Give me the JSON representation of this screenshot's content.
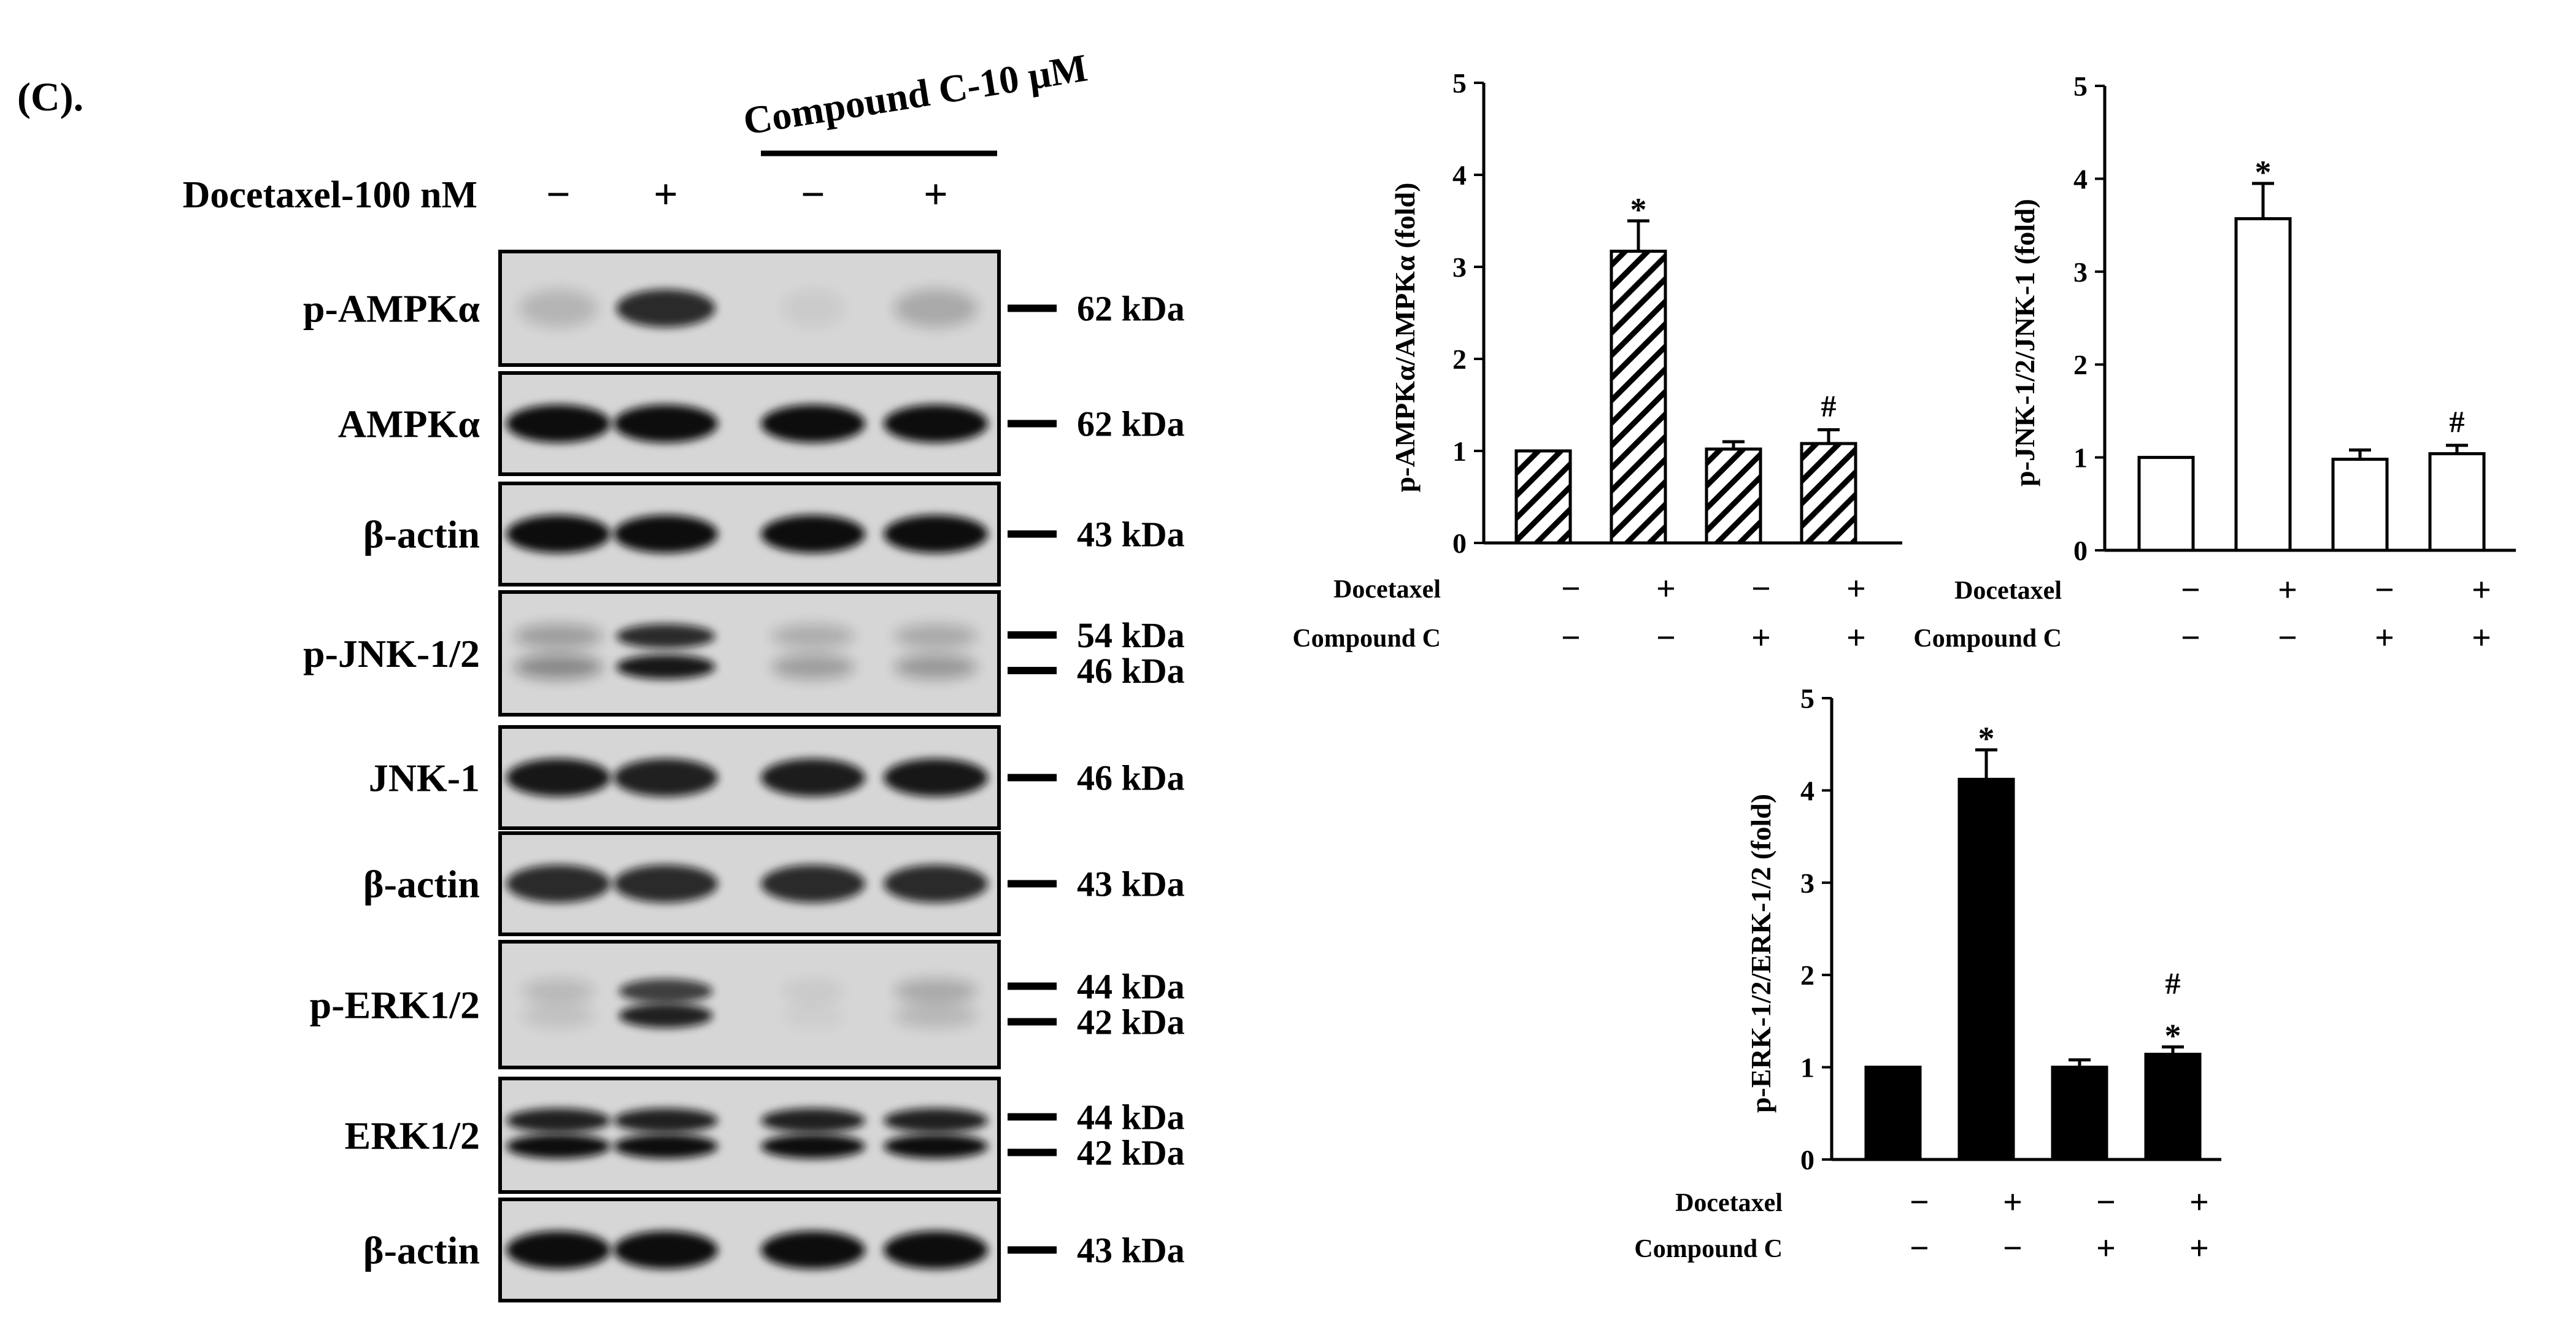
{
  "figure": {
    "panel_label": "(C).",
    "blot": {
      "treatment_label": "Docetaxel-100 nM",
      "docetaxel_signs": [
        "−",
        "+",
        "−",
        "+"
      ],
      "bracket_label": "Compound C-10 μM",
      "rows": [
        {
          "label": "p-AMPKα",
          "markers": [
            "62 kDa"
          ]
        },
        {
          "label": "AMPKα",
          "markers": [
            "62 kDa"
          ]
        },
        {
          "label": "β-actin",
          "markers": [
            "43 kDa"
          ]
        },
        {
          "label": "p-JNK-1/2",
          "markers": [
            "54 kDa",
            "46 kDa"
          ]
        },
        {
          "label": "JNK-1",
          "markers": [
            "46 kDa"
          ]
        },
        {
          "label": "β-actin",
          "markers": [
            "43 kDa"
          ]
        },
        {
          "label": "p-ERK1/2",
          "markers": [
            "44 kDa",
            "42 kDa"
          ]
        },
        {
          "label": "ERK1/2",
          "markers": [
            "44 kDa",
            "42 kDa"
          ]
        },
        {
          "label": "β-actin",
          "markers": [
            "43 kDa"
          ]
        }
      ]
    }
  },
  "chart_data": [
    {
      "type": "bar",
      "ylabel": "p-AMPKα/AMPKα (fold)",
      "ylim": [
        0,
        5
      ],
      "yticks": [
        "0",
        "1",
        "2",
        "3",
        "4",
        "5"
      ],
      "fill": "hatched",
      "values": [
        1.0,
        3.17,
        1.02,
        1.08
      ],
      "errors": [
        0.0,
        0.33,
        0.08,
        0.15
      ],
      "annotations": [
        {
          "bar": 1,
          "text": "*"
        },
        {
          "bar": 3,
          "text": "#"
        }
      ],
      "conditions": [
        {
          "label": "Docetaxel",
          "signs": [
            "−",
            "+",
            "−",
            "+"
          ]
        },
        {
          "label": "Compound C",
          "signs": [
            "−",
            "−",
            "+",
            "+"
          ]
        }
      ]
    },
    {
      "type": "bar",
      "ylabel": "p-JNK-1/2/JNK-1 (fold)",
      "ylim": [
        0,
        5
      ],
      "yticks": [
        "0",
        "1",
        "2",
        "3",
        "4",
        "5"
      ],
      "fill": "white",
      "values": [
        1.0,
        3.57,
        0.98,
        1.04
      ],
      "errors": [
        0.0,
        0.38,
        0.1,
        0.09
      ],
      "annotations": [
        {
          "bar": 1,
          "text": "*"
        },
        {
          "bar": 3,
          "text": "#"
        }
      ],
      "conditions": [
        {
          "label": "Docetaxel",
          "signs": [
            "−",
            "+",
            "−",
            "+"
          ]
        },
        {
          "label": "Compound C",
          "signs": [
            "−",
            "−",
            "+",
            "+"
          ]
        }
      ]
    },
    {
      "type": "bar",
      "ylabel": "p-ERK-1/2/ERK-1/2 (fold)",
      "ylim": [
        0,
        5
      ],
      "yticks": [
        "0",
        "1",
        "2",
        "3",
        "4",
        "5"
      ],
      "fill": "black",
      "values": [
        1.0,
        4.12,
        1.0,
        1.14
      ],
      "errors": [
        0.0,
        0.32,
        0.08,
        0.08
      ],
      "annotations": [
        {
          "bar": 1,
          "text": "*"
        },
        {
          "bar": 3,
          "text": "*"
        },
        {
          "bar": 3,
          "text": "#"
        }
      ],
      "conditions": [
        {
          "label": "Docetaxel",
          "signs": [
            "−",
            "+",
            "−",
            "+"
          ]
        },
        {
          "label": "Compound C",
          "signs": [
            "−",
            "−",
            "+",
            "+"
          ]
        }
      ]
    }
  ]
}
